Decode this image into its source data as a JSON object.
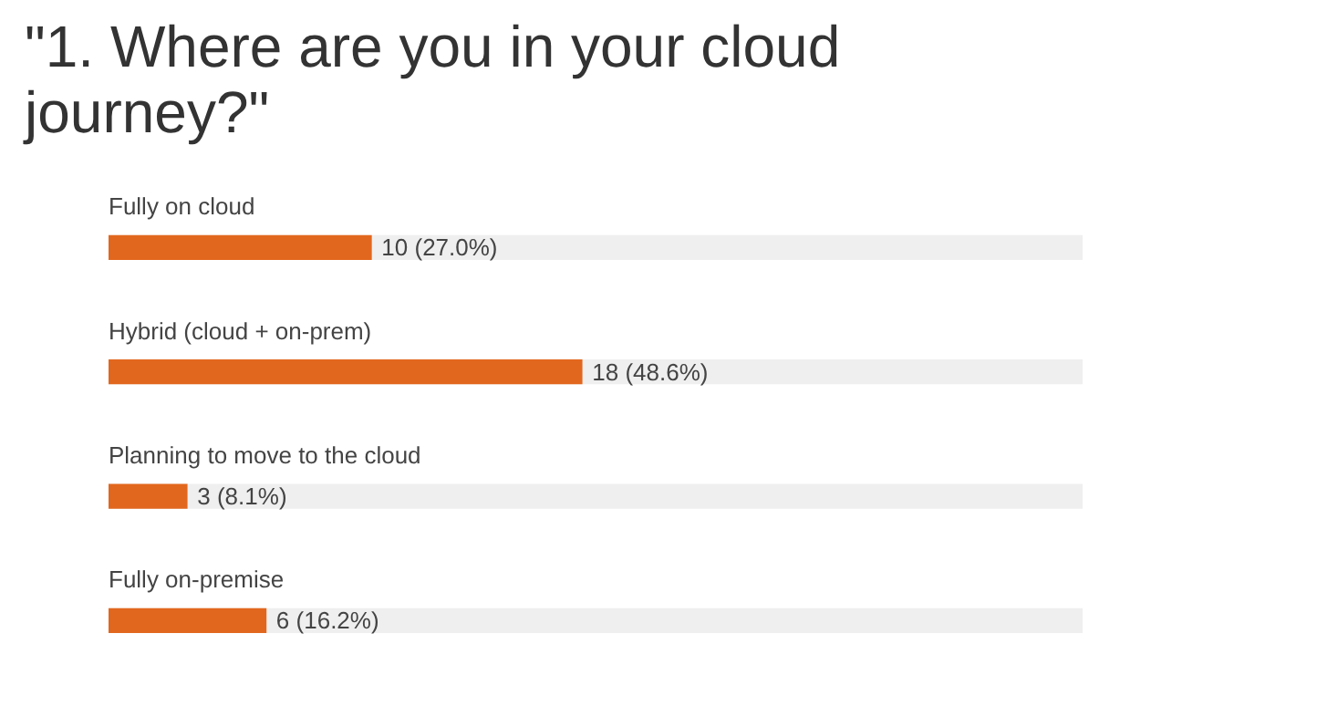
{
  "chart_data": {
    "type": "bar",
    "orientation": "horizontal",
    "title": "\"1. Where are you in your cloud journey?\"",
    "categories": [
      "Fully on cloud",
      "Hybrid (cloud + on-prem)",
      "Planning to move to the cloud",
      "Fully on-premise"
    ],
    "values": [
      10,
      18,
      3,
      6
    ],
    "color": "#e2671e",
    "tick_labels": false,
    "grid": false,
    "value_labels": [
      "10 (27.0%)",
      "18 (48.6%)",
      "3 (8.1%)",
      "6 (16.2%)"
    ]
  }
}
